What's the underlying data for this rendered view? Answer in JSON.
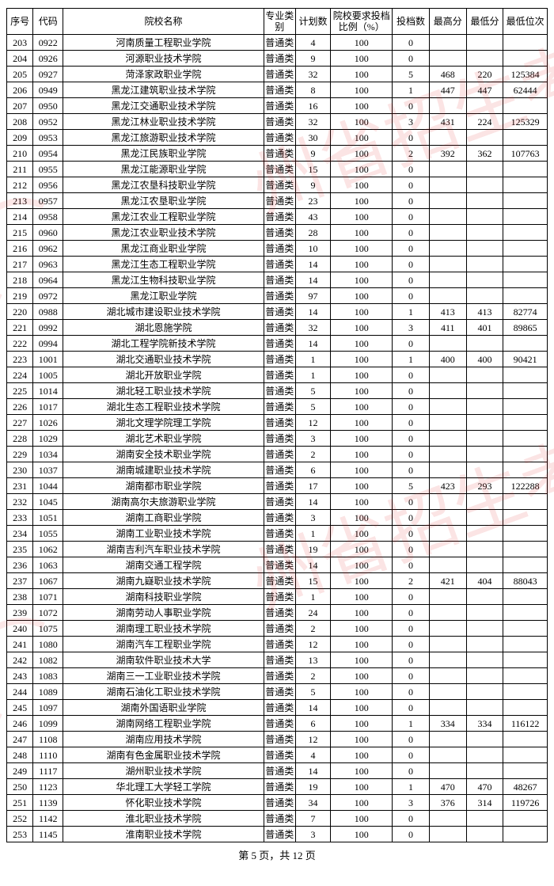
{
  "headers": {
    "seq": "序号",
    "code": "代码",
    "name": "院校名称",
    "type": "专业类别",
    "plan": "计划数",
    "ratio": "院校要求投档比例（%）",
    "filed": "投档数",
    "max": "最高分",
    "min": "最低分",
    "rank": "最低位次"
  },
  "footer": "第 5 页，共 12 页",
  "watermark_text": "州省招生考试院",
  "rows": [
    {
      "seq": "203",
      "code": "0922",
      "name": "河南质量工程职业学院",
      "type": "普通类",
      "plan": "4",
      "ratio": "100",
      "filed": "0",
      "max": "",
      "min": "",
      "rank": ""
    },
    {
      "seq": "204",
      "code": "0926",
      "name": "河源职业技术学院",
      "type": "普通类",
      "plan": "9",
      "ratio": "100",
      "filed": "0",
      "max": "",
      "min": "",
      "rank": ""
    },
    {
      "seq": "205",
      "code": "0927",
      "name": "菏泽家政职业学院",
      "type": "普通类",
      "plan": "32",
      "ratio": "100",
      "filed": "5",
      "max": "468",
      "min": "220",
      "rank": "125384"
    },
    {
      "seq": "206",
      "code": "0949",
      "name": "黑龙江建筑职业技术学院",
      "type": "普通类",
      "plan": "8",
      "ratio": "100",
      "filed": "1",
      "max": "447",
      "min": "447",
      "rank": "62444"
    },
    {
      "seq": "207",
      "code": "0950",
      "name": "黑龙江交通职业技术学院",
      "type": "普通类",
      "plan": "16",
      "ratio": "100",
      "filed": "0",
      "max": "",
      "min": "",
      "rank": ""
    },
    {
      "seq": "208",
      "code": "0952",
      "name": "黑龙江林业职业技术学院",
      "type": "普通类",
      "plan": "32",
      "ratio": "100",
      "filed": "3",
      "max": "431",
      "min": "224",
      "rank": "125329"
    },
    {
      "seq": "209",
      "code": "0953",
      "name": "黑龙江旅游职业技术学院",
      "type": "普通类",
      "plan": "30",
      "ratio": "100",
      "filed": "0",
      "max": "",
      "min": "",
      "rank": ""
    },
    {
      "seq": "210",
      "code": "0954",
      "name": "黑龙江民族职业学院",
      "type": "普通类",
      "plan": "9",
      "ratio": "100",
      "filed": "2",
      "max": "392",
      "min": "362",
      "rank": "107763"
    },
    {
      "seq": "211",
      "code": "0955",
      "name": "黑龙江能源职业学院",
      "type": "普通类",
      "plan": "15",
      "ratio": "100",
      "filed": "0",
      "max": "",
      "min": "",
      "rank": ""
    },
    {
      "seq": "212",
      "code": "0956",
      "name": "黑龙江农垦科技职业学院",
      "type": "普通类",
      "plan": "9",
      "ratio": "100",
      "filed": "0",
      "max": "",
      "min": "",
      "rank": ""
    },
    {
      "seq": "213",
      "code": "0957",
      "name": "黑龙江农垦职业学院",
      "type": "普通类",
      "plan": "23",
      "ratio": "100",
      "filed": "0",
      "max": "",
      "min": "",
      "rank": ""
    },
    {
      "seq": "214",
      "code": "0958",
      "name": "黑龙江农业工程职业学院",
      "type": "普通类",
      "plan": "43",
      "ratio": "100",
      "filed": "0",
      "max": "",
      "min": "",
      "rank": ""
    },
    {
      "seq": "215",
      "code": "0960",
      "name": "黑龙江农业职业技术学院",
      "type": "普通类",
      "plan": "28",
      "ratio": "100",
      "filed": "0",
      "max": "",
      "min": "",
      "rank": ""
    },
    {
      "seq": "216",
      "code": "0962",
      "name": "黑龙江商业职业学院",
      "type": "普通类",
      "plan": "10",
      "ratio": "100",
      "filed": "0",
      "max": "",
      "min": "",
      "rank": ""
    },
    {
      "seq": "217",
      "code": "0963",
      "name": "黑龙江生态工程职业学院",
      "type": "普通类",
      "plan": "14",
      "ratio": "100",
      "filed": "0",
      "max": "",
      "min": "",
      "rank": ""
    },
    {
      "seq": "218",
      "code": "0964",
      "name": "黑龙江生物科技职业学院",
      "type": "普通类",
      "plan": "14",
      "ratio": "100",
      "filed": "0",
      "max": "",
      "min": "",
      "rank": ""
    },
    {
      "seq": "219",
      "code": "0972",
      "name": "黑龙江职业学院",
      "type": "普通类",
      "plan": "97",
      "ratio": "100",
      "filed": "0",
      "max": "",
      "min": "",
      "rank": ""
    },
    {
      "seq": "220",
      "code": "0988",
      "name": "湖北城市建设职业技术学院",
      "type": "普通类",
      "plan": "14",
      "ratio": "100",
      "filed": "1",
      "max": "413",
      "min": "413",
      "rank": "82774"
    },
    {
      "seq": "221",
      "code": "0992",
      "name": "湖北恩施学院",
      "type": "普通类",
      "plan": "32",
      "ratio": "100",
      "filed": "3",
      "max": "411",
      "min": "401",
      "rank": "89865"
    },
    {
      "seq": "222",
      "code": "0994",
      "name": "湖北工程学院新技术学院",
      "type": "普通类",
      "plan": "14",
      "ratio": "100",
      "filed": "0",
      "max": "",
      "min": "",
      "rank": ""
    },
    {
      "seq": "223",
      "code": "1001",
      "name": "湖北交通职业技术学院",
      "type": "普通类",
      "plan": "1",
      "ratio": "100",
      "filed": "1",
      "max": "400",
      "min": "400",
      "rank": "90421"
    },
    {
      "seq": "224",
      "code": "1005",
      "name": "湖北开放职业学院",
      "type": "普通类",
      "plan": "1",
      "ratio": "100",
      "filed": "0",
      "max": "",
      "min": "",
      "rank": ""
    },
    {
      "seq": "225",
      "code": "1014",
      "name": "湖北轻工职业技术学院",
      "type": "普通类",
      "plan": "5",
      "ratio": "100",
      "filed": "0",
      "max": "",
      "min": "",
      "rank": ""
    },
    {
      "seq": "226",
      "code": "1017",
      "name": "湖北生态工程职业技术学院",
      "type": "普通类",
      "plan": "5",
      "ratio": "100",
      "filed": "0",
      "max": "",
      "min": "",
      "rank": ""
    },
    {
      "seq": "227",
      "code": "1026",
      "name": "湖北文理学院理工学院",
      "type": "普通类",
      "plan": "12",
      "ratio": "100",
      "filed": "0",
      "max": "",
      "min": "",
      "rank": ""
    },
    {
      "seq": "228",
      "code": "1029",
      "name": "湖北艺术职业学院",
      "type": "普通类",
      "plan": "3",
      "ratio": "100",
      "filed": "0",
      "max": "",
      "min": "",
      "rank": ""
    },
    {
      "seq": "229",
      "code": "1034",
      "name": "湖南安全技术职业学院",
      "type": "普通类",
      "plan": "2",
      "ratio": "100",
      "filed": "0",
      "max": "",
      "min": "",
      "rank": ""
    },
    {
      "seq": "230",
      "code": "1037",
      "name": "湖南城建职业技术学院",
      "type": "普通类",
      "plan": "6",
      "ratio": "100",
      "filed": "0",
      "max": "",
      "min": "",
      "rank": ""
    },
    {
      "seq": "231",
      "code": "1044",
      "name": "湖南都市职业学院",
      "type": "普通类",
      "plan": "17",
      "ratio": "100",
      "filed": "5",
      "max": "423",
      "min": "293",
      "rank": "122288"
    },
    {
      "seq": "232",
      "code": "1045",
      "name": "湖南高尔夫旅游职业学院",
      "type": "普通类",
      "plan": "14",
      "ratio": "100",
      "filed": "0",
      "max": "",
      "min": "",
      "rank": ""
    },
    {
      "seq": "233",
      "code": "1051",
      "name": "湖南工商职业学院",
      "type": "普通类",
      "plan": "3",
      "ratio": "100",
      "filed": "0",
      "max": "",
      "min": "",
      "rank": ""
    },
    {
      "seq": "234",
      "code": "1055",
      "name": "湖南工业职业技术学院",
      "type": "普通类",
      "plan": "1",
      "ratio": "100",
      "filed": "0",
      "max": "",
      "min": "",
      "rank": ""
    },
    {
      "seq": "235",
      "code": "1062",
      "name": "湖南吉利汽车职业技术学院",
      "type": "普通类",
      "plan": "19",
      "ratio": "100",
      "filed": "0",
      "max": "",
      "min": "",
      "rank": ""
    },
    {
      "seq": "236",
      "code": "1063",
      "name": "湖南交通工程学院",
      "type": "普通类",
      "plan": "14",
      "ratio": "100",
      "filed": "0",
      "max": "",
      "min": "",
      "rank": ""
    },
    {
      "seq": "237",
      "code": "1067",
      "name": "湖南九嶷职业技术学院",
      "type": "普通类",
      "plan": "15",
      "ratio": "100",
      "filed": "2",
      "max": "421",
      "min": "404",
      "rank": "88043"
    },
    {
      "seq": "238",
      "code": "1071",
      "name": "湖南科技职业学院",
      "type": "普通类",
      "plan": "1",
      "ratio": "100",
      "filed": "0",
      "max": "",
      "min": "",
      "rank": ""
    },
    {
      "seq": "239",
      "code": "1072",
      "name": "湖南劳动人事职业学院",
      "type": "普通类",
      "plan": "24",
      "ratio": "100",
      "filed": "0",
      "max": "",
      "min": "",
      "rank": ""
    },
    {
      "seq": "240",
      "code": "1075",
      "name": "湖南理工职业技术学院",
      "type": "普通类",
      "plan": "2",
      "ratio": "100",
      "filed": "0",
      "max": "",
      "min": "",
      "rank": ""
    },
    {
      "seq": "241",
      "code": "1080",
      "name": "湖南汽车工程职业学院",
      "type": "普通类",
      "plan": "12",
      "ratio": "100",
      "filed": "0",
      "max": "",
      "min": "",
      "rank": ""
    },
    {
      "seq": "242",
      "code": "1082",
      "name": "湖南软件职业技术大学",
      "type": "普通类",
      "plan": "13",
      "ratio": "100",
      "filed": "0",
      "max": "",
      "min": "",
      "rank": ""
    },
    {
      "seq": "243",
      "code": "1083",
      "name": "湖南三一工业职业技术学院",
      "type": "普通类",
      "plan": "2",
      "ratio": "100",
      "filed": "0",
      "max": "",
      "min": "",
      "rank": ""
    },
    {
      "seq": "244",
      "code": "1089",
      "name": "湖南石油化工职业技术学院",
      "type": "普通类",
      "plan": "5",
      "ratio": "100",
      "filed": "0",
      "max": "",
      "min": "",
      "rank": ""
    },
    {
      "seq": "245",
      "code": "1097",
      "name": "湖南外国语职业学院",
      "type": "普通类",
      "plan": "14",
      "ratio": "100",
      "filed": "0",
      "max": "",
      "min": "",
      "rank": ""
    },
    {
      "seq": "246",
      "code": "1099",
      "name": "湖南网络工程职业学院",
      "type": "普通类",
      "plan": "6",
      "ratio": "100",
      "filed": "1",
      "max": "334",
      "min": "334",
      "rank": "116122"
    },
    {
      "seq": "247",
      "code": "1108",
      "name": "湖南应用技术学院",
      "type": "普通类",
      "plan": "12",
      "ratio": "100",
      "filed": "0",
      "max": "",
      "min": "",
      "rank": ""
    },
    {
      "seq": "248",
      "code": "1110",
      "name": "湖南有色金属职业技术学院",
      "type": "普通类",
      "plan": "4",
      "ratio": "100",
      "filed": "0",
      "max": "",
      "min": "",
      "rank": ""
    },
    {
      "seq": "249",
      "code": "1117",
      "name": "湖州职业技术学院",
      "type": "普通类",
      "plan": "14",
      "ratio": "100",
      "filed": "0",
      "max": "",
      "min": "",
      "rank": ""
    },
    {
      "seq": "250",
      "code": "1123",
      "name": "华北理工大学轻工学院",
      "type": "普通类",
      "plan": "19",
      "ratio": "100",
      "filed": "1",
      "max": "470",
      "min": "470",
      "rank": "48267"
    },
    {
      "seq": "251",
      "code": "1139",
      "name": "怀化职业技术学院",
      "type": "普通类",
      "plan": "34",
      "ratio": "100",
      "filed": "3",
      "max": "376",
      "min": "314",
      "rank": "119726"
    },
    {
      "seq": "252",
      "code": "1142",
      "name": "淮北职业技术学院",
      "type": "普通类",
      "plan": "7",
      "ratio": "100",
      "filed": "0",
      "max": "",
      "min": "",
      "rank": ""
    },
    {
      "seq": "253",
      "code": "1145",
      "name": "淮南职业技术学院",
      "type": "普通类",
      "plan": "3",
      "ratio": "100",
      "filed": "0",
      "max": "",
      "min": "",
      "rank": ""
    }
  ]
}
